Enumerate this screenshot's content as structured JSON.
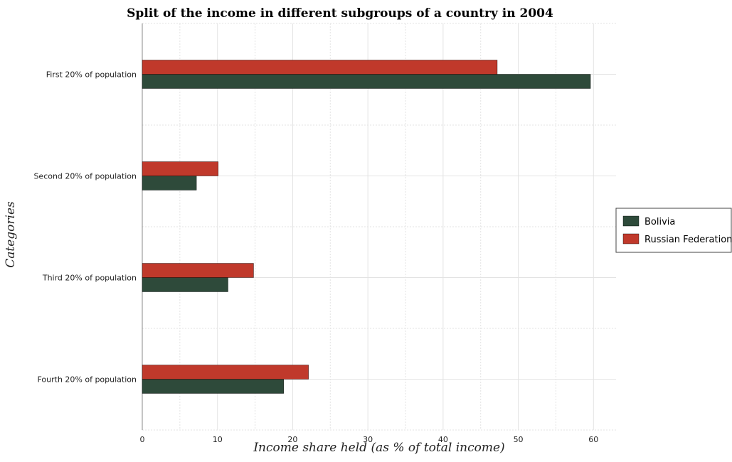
{
  "chart_data": {
    "type": "bar",
    "orientation": "horizontal",
    "title": "Split of the income in different subgroups of a country in 2004",
    "xlabel": "Income share held (as % of total income)",
    "ylabel": "Categories",
    "categories": [
      "First 20% of population",
      "Second 20% of population",
      "Third 20% of population",
      "Fourth 20% of population"
    ],
    "series": [
      {
        "name": "Bolivia",
        "color": "#2e4a3a",
        "values": [
          59.6,
          7.2,
          11.4,
          18.8
        ]
      },
      {
        "name": "Russian Federation",
        "color": "#c0392b",
        "values": [
          47.2,
          10.1,
          14.8,
          22.1
        ]
      }
    ],
    "xlim": [
      0,
      63
    ],
    "xticks": [
      0,
      10,
      20,
      30,
      40,
      50,
      60
    ],
    "grid": true,
    "legend_position": "right"
  }
}
